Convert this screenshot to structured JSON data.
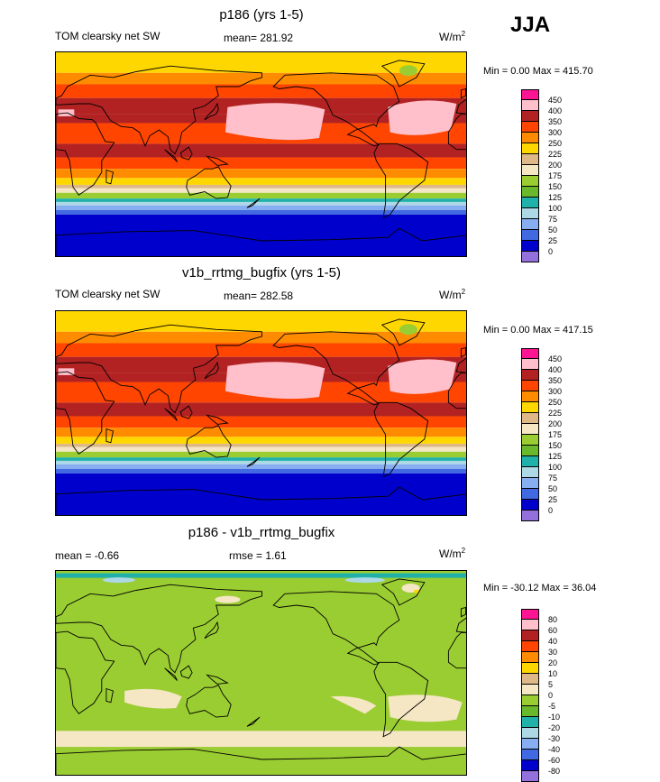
{
  "season": "JJA",
  "panels": [
    {
      "id": "p186",
      "title": "p186 (yrs 1-5)",
      "variable": "TOM clearsky net SW",
      "stat1": "mean= 281.92",
      "stat2": "",
      "units_base": "W/m",
      "units_sup": "2",
      "minmax": "Min =   0.00 Max = 415.70"
    },
    {
      "id": "v1b",
      "title": "v1b_rrtmg_bugfix (yrs 1-5)",
      "variable": "TOM clearsky net SW",
      "stat1": "mean= 282.58",
      "stat2": "",
      "units_base": "W/m",
      "units_sup": "2",
      "minmax": "Min =   0.00 Max = 417.15"
    },
    {
      "id": "diff",
      "title": "p186 - v1b_rrtmg_bugfix",
      "variable": "",
      "stat1": "mean =  -0.66",
      "stat2": "rmse =   1.61",
      "units_base": "W/m",
      "units_sup": "2",
      "minmax": "Min = -30.12 Max =  36.04"
    }
  ],
  "chart_data": [
    {
      "type": "heatmap",
      "title": "p186 (yrs 1-5)",
      "variable": "TOM clearsky net SW",
      "season": "JJA",
      "mean": 281.92,
      "min": 0.0,
      "max": 415.7,
      "units": "W/m^2",
      "colorbar": {
        "levels": [
          0,
          25,
          50,
          75,
          100,
          125,
          150,
          175,
          200,
          225,
          250,
          300,
          350,
          400,
          450
        ],
        "labels": [
          "450",
          "400",
          "350",
          "300",
          "250",
          "225",
          "200",
          "175",
          "150",
          "125",
          "100",
          "75",
          "50",
          "25",
          "0"
        ],
        "colors": [
          "#ff1493",
          "#ffc0cb",
          "#b22222",
          "#ff4500",
          "#ff8c00",
          "#ffd700",
          "#deb887",
          "#f5e6c4",
          "#9acd32",
          "#6ab82c",
          "#20b2aa",
          "#add8e6",
          "#87aef0",
          "#4169e1",
          "#0000cd",
          "#9370db"
        ]
      }
    },
    {
      "type": "heatmap",
      "title": "v1b_rrtmg_bugfix (yrs 1-5)",
      "variable": "TOM clearsky net SW",
      "season": "JJA",
      "mean": 282.58,
      "min": 0.0,
      "max": 417.15,
      "units": "W/m^2",
      "colorbar": {
        "levels": [
          0,
          25,
          50,
          75,
          100,
          125,
          150,
          175,
          200,
          225,
          250,
          300,
          350,
          400,
          450
        ],
        "labels": [
          "450",
          "400",
          "350",
          "300",
          "250",
          "225",
          "200",
          "175",
          "150",
          "125",
          "100",
          "75",
          "50",
          "25",
          "0"
        ],
        "colors": [
          "#ff1493",
          "#ffc0cb",
          "#b22222",
          "#ff4500",
          "#ff8c00",
          "#ffd700",
          "#deb887",
          "#f5e6c4",
          "#9acd32",
          "#6ab82c",
          "#20b2aa",
          "#add8e6",
          "#87aef0",
          "#4169e1",
          "#0000cd",
          "#9370db"
        ]
      }
    },
    {
      "type": "heatmap",
      "title": "p186 - v1b_rrtmg_bugfix",
      "season": "JJA",
      "mean": -0.66,
      "rmse": 1.61,
      "min": -30.12,
      "max": 36.04,
      "units": "W/m^2",
      "colorbar": {
        "levels": [
          -80,
          -60,
          -40,
          -30,
          -20,
          -10,
          -5,
          0,
          5,
          10,
          20,
          30,
          40,
          60,
          80
        ],
        "labels": [
          "80",
          "60",
          "40",
          "30",
          "20",
          "10",
          "5",
          "0",
          "-5",
          "-10",
          "-20",
          "-30",
          "-40",
          "-60",
          "-80"
        ],
        "colors": [
          "#ff1493",
          "#ffc0cb",
          "#b22222",
          "#ff4500",
          "#ff8c00",
          "#ffd700",
          "#deb887",
          "#f5e6c4",
          "#9acd32",
          "#6ab82c",
          "#20b2aa",
          "#add8e6",
          "#87aef0",
          "#4169e1",
          "#0000cd",
          "#9370db"
        ]
      }
    }
  ]
}
